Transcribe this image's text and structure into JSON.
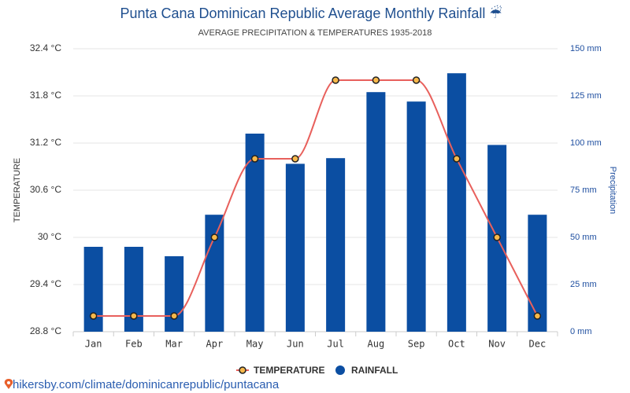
{
  "chart_data": {
    "type": "combo",
    "title": "Punta Cana Dominican Republic Average Monthly Rainfall ☔",
    "subtitle": "AVERAGE PRECIPITATION & TEMPERATURES 1935-2018",
    "y_label": "TEMPERATURE",
    "y2_label": "Precipitation",
    "categories": [
      "Jan",
      "Feb",
      "Mar",
      "Apr",
      "May",
      "Jun",
      "Jul",
      "Aug",
      "Sep",
      "Oct",
      "Nov",
      "Dec"
    ],
    "series": [
      {
        "name": "TEMPERATURE",
        "type": "line",
        "color": "#e8605c",
        "marker_color": "#f7b84a",
        "values": [
          29.0,
          29.0,
          29.0,
          30.0,
          31.0,
          31.0,
          32.0,
          32.0,
          32.0,
          31.0,
          30.0,
          29.0
        ]
      },
      {
        "name": "RAINFALL",
        "type": "bar",
        "axis": "y2",
        "color": "#0b4ea2",
        "values": [
          45,
          45,
          40,
          62,
          105,
          89,
          92,
          127,
          122,
          137,
          99,
          62
        ]
      }
    ],
    "ylim": [
      28.8,
      32.4
    ],
    "yticks": [
      {
        "value": 28.8,
        "label": "28.8 °C"
      },
      {
        "value": 29.4,
        "label": "29.4 °C"
      },
      {
        "value": 30,
        "label": "30 °C"
      },
      {
        "value": 30.6,
        "label": "30.6 °C"
      },
      {
        "value": 31.2,
        "label": "31.2 °C"
      },
      {
        "value": 31.8,
        "label": "31.8 °C"
      },
      {
        "value": 32.4,
        "label": "32.4 °C"
      }
    ],
    "y2lim": [
      0,
      150
    ],
    "y2ticks": [
      {
        "value": 0,
        "label": "0 mm"
      },
      {
        "value": 25,
        "label": "25 mm"
      },
      {
        "value": 50,
        "label": "50 mm"
      },
      {
        "value": 75,
        "label": "75 mm"
      },
      {
        "value": 100,
        "label": "100 mm"
      },
      {
        "value": 125,
        "label": "125 mm"
      },
      {
        "value": 150,
        "label": "150 mm"
      }
    ],
    "grid": true,
    "legend": "bottom",
    "source": "hikersby.com/climate/dominicanrepublic/puntacana"
  }
}
